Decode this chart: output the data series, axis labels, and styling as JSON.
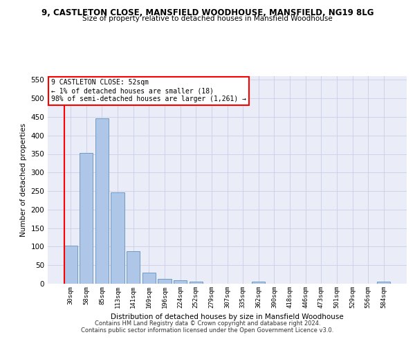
{
  "title": "9, CASTLETON CLOSE, MANSFIELD WOODHOUSE, MANSFIELD, NG19 8LG",
  "subtitle": "Size of property relative to detached houses in Mansfield Woodhouse",
  "xlabel": "Distribution of detached houses by size in Mansfield Woodhouse",
  "ylabel": "Number of detached properties",
  "footer1": "Contains HM Land Registry data © Crown copyright and database right 2024.",
  "footer2": "Contains public sector information licensed under the Open Government Licence v3.0.",
  "bin_labels": [
    "30sqm",
    "58sqm",
    "85sqm",
    "113sqm",
    "141sqm",
    "169sqm",
    "196sqm",
    "224sqm",
    "252sqm",
    "279sqm",
    "307sqm",
    "335sqm",
    "362sqm",
    "390sqm",
    "418sqm",
    "446sqm",
    "473sqm",
    "501sqm",
    "529sqm",
    "556sqm",
    "584sqm"
  ],
  "bar_values": [
    103,
    353,
    447,
    246,
    88,
    30,
    14,
    10,
    6,
    0,
    0,
    0,
    6,
    0,
    0,
    0,
    0,
    0,
    0,
    0,
    6
  ],
  "bar_color": "#aec6e8",
  "bar_edge_color": "#6090c0",
  "grid_color": "#c8d0e8",
  "background_color": "#eaecf8",
  "annotation_line1": "9 CASTLETON CLOSE: 52sqm",
  "annotation_line2": "← 1% of detached houses are smaller (18)",
  "annotation_line3": "98% of semi-detached houses are larger (1,261) →",
  "red_line_x": -0.42,
  "ylim_max": 560,
  "yticks": [
    0,
    50,
    100,
    150,
    200,
    250,
    300,
    350,
    400,
    450,
    500,
    550
  ]
}
